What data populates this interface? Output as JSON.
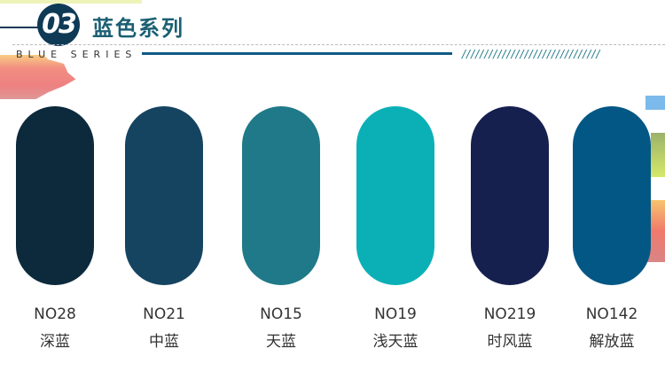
{
  "header": {
    "number": "03",
    "title": "蓝色系列",
    "subtitle": "BLUE SERIES",
    "hatch": "///////////////////////////////"
  },
  "swatches": [
    {
      "code": "NO28",
      "name": "深蓝",
      "color": "#0c2a3c"
    },
    {
      "code": "NO21",
      "name": "中蓝",
      "color": "#154461"
    },
    {
      "code": "NO15",
      "name": "天蓝",
      "color": "#1f7988"
    },
    {
      "code": "NO19",
      "name": "浅天蓝",
      "color": "#0bb0b7"
    },
    {
      "code": "NO219",
      "name": "时风蓝",
      "color": "#15204f"
    },
    {
      "code": "NO142",
      "name": "解放蓝",
      "color": "#035785"
    }
  ]
}
